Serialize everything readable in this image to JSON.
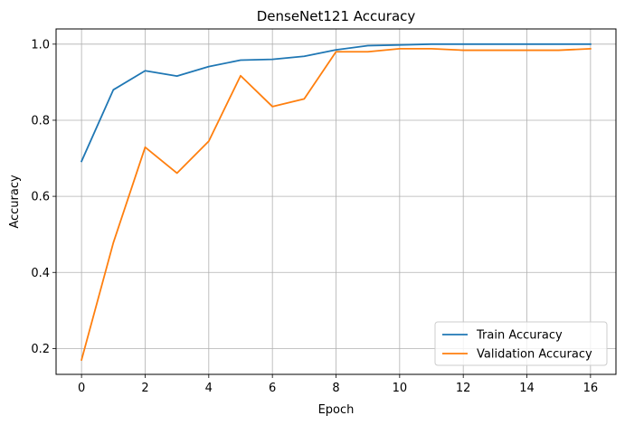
{
  "chart_data": {
    "type": "line",
    "title": "DenseNet121 Accuracy",
    "xlabel": "Epoch",
    "ylabel": "Accuracy",
    "xlim": [
      -0.8,
      16.8
    ],
    "ylim": [
      0.132,
      1.04
    ],
    "xticks": [
      0,
      2,
      4,
      6,
      8,
      10,
      12,
      14,
      16
    ],
    "yticks": [
      0.2,
      0.4,
      0.6,
      0.8,
      1.0
    ],
    "ytick_labels": [
      "0.2",
      "0.4",
      "0.6",
      "0.8",
      "1.0"
    ],
    "x": [
      0,
      1,
      2,
      3,
      4,
      5,
      6,
      7,
      8,
      9,
      10,
      11,
      12,
      13,
      14,
      15,
      16
    ],
    "grid": true,
    "legend_position": "lower-right",
    "series": [
      {
        "name": "Train Accuracy",
        "color": "#1f77b4",
        "values": [
          0.692,
          0.88,
          0.93,
          0.916,
          0.941,
          0.958,
          0.96,
          0.968,
          0.985,
          0.996,
          0.998,
          1.0,
          1.0,
          1.0,
          1.0,
          1.0,
          1.0
        ]
      },
      {
        "name": "Validation Accuracy",
        "color": "#ff7f0e",
        "values": [
          0.17,
          0.478,
          0.729,
          0.661,
          0.745,
          0.917,
          0.836,
          0.856,
          0.98,
          0.98,
          0.988,
          0.988,
          0.984,
          0.984,
          0.984,
          0.984,
          0.988
        ]
      }
    ]
  }
}
